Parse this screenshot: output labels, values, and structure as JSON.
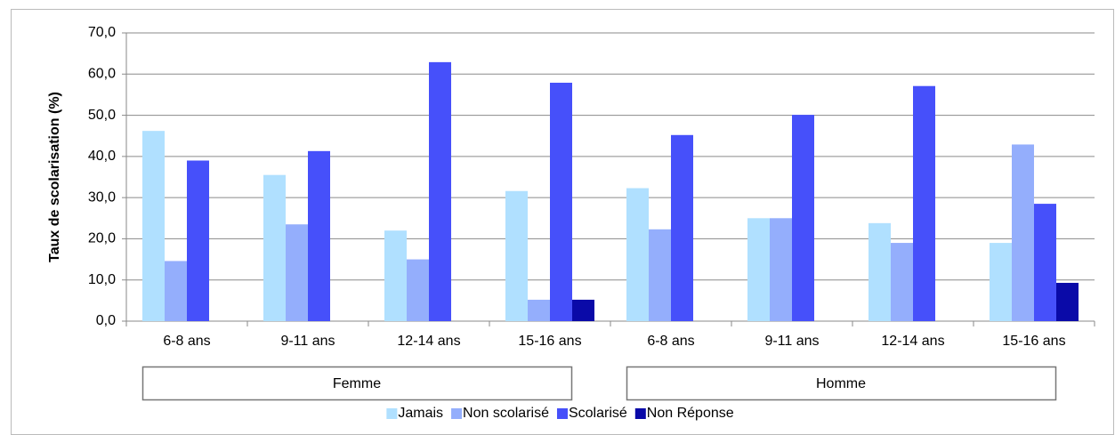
{
  "chart_data": {
    "type": "bar",
    "y_label": "Taux de scolarisation (%)",
    "categories": [
      "6-8 ans",
      "9-11 ans",
      "12-14 ans",
      "15-16 ans",
      "6-8 ans",
      "9-11 ans",
      "12-14 ans",
      "15-16 ans"
    ],
    "groups": [
      "Femme",
      "Homme"
    ],
    "series": [
      {
        "name": "Jamais",
        "color": "#b0e0ff",
        "values": [
          46.2,
          35.5,
          22.0,
          31.6,
          32.3,
          25.0,
          23.8,
          19.0
        ]
      },
      {
        "name": "Non scolarisé",
        "color": "#94aefc",
        "values": [
          14.6,
          23.5,
          15.0,
          5.2,
          22.3,
          25.0,
          19.0,
          42.9
        ]
      },
      {
        "name": "Scolarisé",
        "color": "#4650fa",
        "values": [
          39.0,
          41.3,
          62.9,
          57.9,
          45.2,
          50.1,
          57.1,
          28.5
        ]
      },
      {
        "name": "Non Réponse",
        "color": "#0a0aa8",
        "values": [
          0,
          0,
          0,
          5.2,
          0,
          0,
          0,
          9.3
        ]
      }
    ],
    "ylim": [
      0,
      70
    ],
    "yticks": [
      {
        "value": 0,
        "label": "0,0"
      },
      {
        "value": 10,
        "label": "10,0"
      },
      {
        "value": 20,
        "label": "20,0"
      },
      {
        "value": 30,
        "label": "30,0"
      },
      {
        "value": 40,
        "label": "40,0"
      },
      {
        "value": 50,
        "label": "50,0"
      },
      {
        "value": 60,
        "label": "60,0"
      },
      {
        "value": 70,
        "label": "70,0"
      }
    ],
    "grid": true,
    "legend": "bottom"
  }
}
